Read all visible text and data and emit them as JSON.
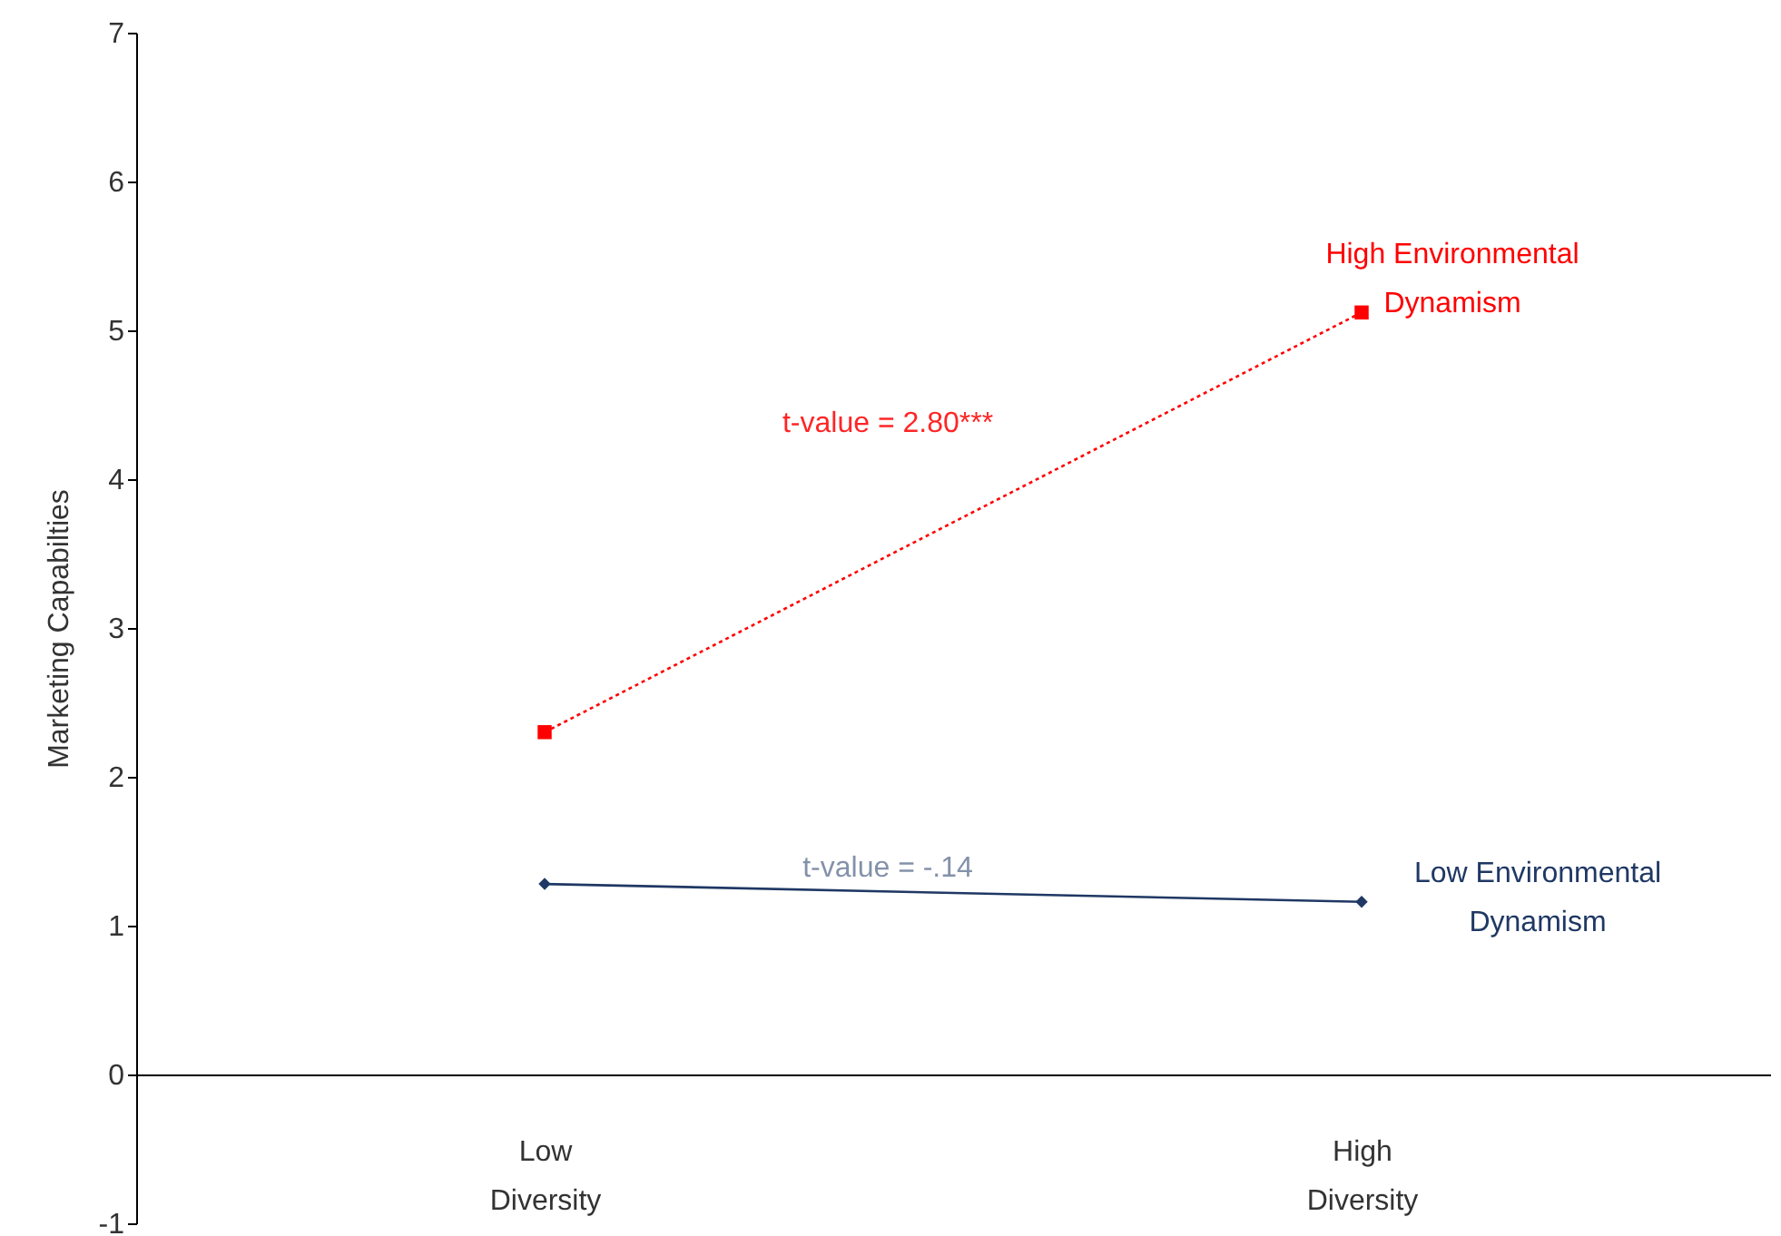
{
  "chart_data": {
    "type": "line",
    "ylabel": "Marketing Capabilties",
    "categories": [
      "Low Diversity",
      "High Diversity"
    ],
    "series": [
      {
        "name": "High Environmental Dynamism",
        "color": "#ff0000",
        "values": [
          2.3,
          5.12
        ],
        "marker": "square",
        "line_style": "dotted"
      },
      {
        "name": "Low Environmental Dynamism",
        "color": "#1f3864",
        "values": [
          1.28,
          1.16
        ],
        "marker": "diamond",
        "line_style": "solid"
      }
    ],
    "annotations": [
      "t-value = 2.80***",
      "t-value = -.14"
    ],
    "ylim": [
      -1,
      7
    ],
    "yticks": [
      -1,
      0,
      1,
      2,
      3,
      4,
      5,
      6,
      7
    ]
  }
}
